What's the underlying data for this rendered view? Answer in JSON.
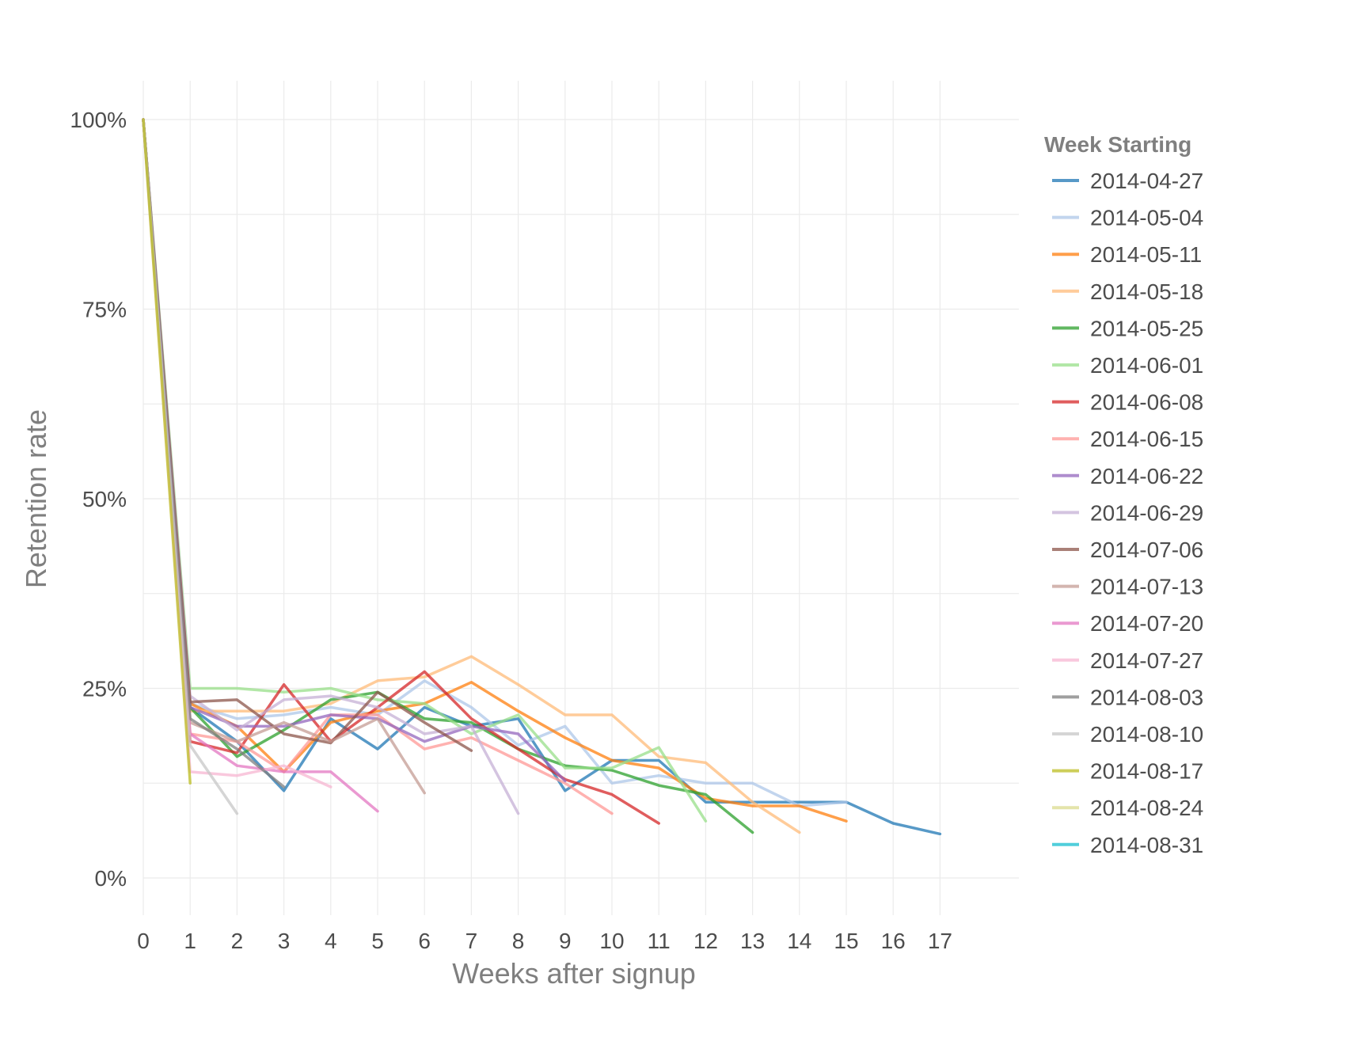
{
  "chart_data": {
    "type": "line",
    "xlabel": "Weeks after signup",
    "ylabel": "Retention rate",
    "xlim": [
      0,
      18.5
    ],
    "ylim": [
      -0.05,
      1.05
    ],
    "x_ticks": [
      0,
      1,
      2,
      3,
      4,
      5,
      6,
      7,
      8,
      9,
      10,
      11,
      12,
      13,
      14,
      15,
      16,
      17
    ],
    "y_ticks": [
      {
        "value": 0,
        "label": "0%"
      },
      {
        "value": 0.25,
        "label": "25%"
      },
      {
        "value": 0.5,
        "label": "50%"
      },
      {
        "value": 0.75,
        "label": "75%"
      },
      {
        "value": 1.0,
        "label": "100%"
      }
    ],
    "y_minor_gridlines": [
      0.125,
      0.375,
      0.625,
      0.875
    ],
    "grid": true,
    "legend": {
      "title": "Week Starting",
      "position": "right"
    },
    "series": [
      {
        "name": "2014-04-27",
        "color": "#1f77b4",
        "values": [
          1.0,
          0.225,
          0.18,
          0.115,
          0.21,
          0.17,
          0.225,
          0.2,
          0.21,
          0.115,
          0.155,
          0.155,
          0.1,
          0.1,
          0.1,
          0.1,
          0.072,
          0.058
        ]
      },
      {
        "name": "2014-05-04",
        "color": "#aec7e8",
        "values": [
          1.0,
          0.23,
          0.21,
          0.215,
          0.225,
          0.215,
          0.26,
          0.225,
          0.175,
          0.2,
          0.125,
          0.135,
          0.125,
          0.125,
          0.095,
          0.1
        ]
      },
      {
        "name": "2014-05-11",
        "color": "#ff7f0e",
        "values": [
          1.0,
          0.23,
          0.2,
          0.14,
          0.205,
          0.22,
          0.23,
          0.258,
          0.22,
          0.185,
          0.155,
          0.145,
          0.105,
          0.095,
          0.095,
          0.075
        ]
      },
      {
        "name": "2014-05-18",
        "color": "#ffbb78",
        "values": [
          1.0,
          0.22,
          0.22,
          0.22,
          0.23,
          0.26,
          0.265,
          0.292,
          0.255,
          0.215,
          0.215,
          0.16,
          0.152,
          0.1,
          0.06
        ]
      },
      {
        "name": "2014-05-25",
        "color": "#2ca02c",
        "values": [
          1.0,
          0.225,
          0.16,
          0.195,
          0.235,
          0.245,
          0.21,
          0.205,
          0.17,
          0.148,
          0.142,
          0.122,
          0.11,
          0.06
        ]
      },
      {
        "name": "2014-06-01",
        "color": "#98df8a",
        "values": [
          1.0,
          0.25,
          0.25,
          0.245,
          0.25,
          0.235,
          0.23,
          0.19,
          0.215,
          0.145,
          0.145,
          0.172,
          0.075
        ]
      },
      {
        "name": "2014-06-08",
        "color": "#d62728",
        "values": [
          1.0,
          0.18,
          0.165,
          0.255,
          0.18,
          0.225,
          0.272,
          0.21,
          0.17,
          0.13,
          0.11,
          0.072
        ]
      },
      {
        "name": "2014-06-15",
        "color": "#ff9896",
        "values": [
          1.0,
          0.19,
          0.18,
          0.14,
          0.215,
          0.215,
          0.17,
          0.185,
          0.155,
          0.125,
          0.085
        ]
      },
      {
        "name": "2014-06-22",
        "color": "#9467bd",
        "values": [
          1.0,
          0.225,
          0.2,
          0.2,
          0.215,
          0.21,
          0.18,
          0.2,
          0.19,
          0.128
        ]
      },
      {
        "name": "2014-06-29",
        "color": "#c5b0d5",
        "values": [
          1.0,
          0.24,
          0.195,
          0.235,
          0.24,
          0.225,
          0.19,
          0.2,
          0.085
        ]
      },
      {
        "name": "2014-07-06",
        "color": "#8c564b",
        "values": [
          1.0,
          0.232,
          0.235,
          0.19,
          0.178,
          0.245,
          0.205,
          0.168
        ]
      },
      {
        "name": "2014-07-13",
        "color": "#c49c94",
        "values": [
          1.0,
          0.205,
          0.18,
          0.205,
          0.18,
          0.21,
          0.112
        ]
      },
      {
        "name": "2014-07-20",
        "color": "#e377c2",
        "values": [
          1.0,
          0.19,
          0.148,
          0.14,
          0.14,
          0.088
        ]
      },
      {
        "name": "2014-07-27",
        "color": "#f7b6d2",
        "values": [
          1.0,
          0.14,
          0.135,
          0.148,
          0.12
        ]
      },
      {
        "name": "2014-08-03",
        "color": "#7f7f7f",
        "values": [
          1.0,
          0.21,
          0.17,
          0.12
        ]
      },
      {
        "name": "2014-08-10",
        "color": "#c7c7c7",
        "values": [
          1.0,
          0.175,
          0.085
        ]
      },
      {
        "name": "2014-08-17",
        "color": "#bcbd22",
        "values": [
          1.0,
          0.125
        ]
      },
      {
        "name": "2014-08-24",
        "color": "#dbdb8d",
        "values": [
          1.0
        ]
      },
      {
        "name": "2014-08-31",
        "color": "#17becf",
        "values": [
          1.0
        ]
      }
    ]
  }
}
